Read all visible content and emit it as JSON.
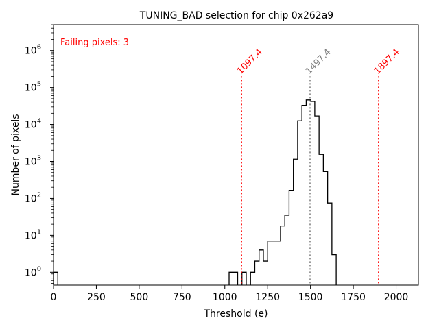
{
  "chart_data": {
    "type": "histogram",
    "title": "TUNING_BAD selection for chip 0x262a9",
    "xlabel": "Threshold (e)",
    "ylabel": "Number of pixels",
    "xlim": [
      0,
      2130
    ],
    "ylim": [
      0.45,
      5000000
    ],
    "yscale": "log",
    "xticks": [
      0,
      250,
      500,
      750,
      1000,
      1250,
      1500,
      1750,
      2000
    ],
    "xtick_labels": [
      "0",
      "250",
      "500",
      "750",
      "1000",
      "1250",
      "1500",
      "1750",
      "2000"
    ],
    "yticks": [
      1,
      10,
      100,
      1000,
      10000,
      100000,
      1000000
    ],
    "ytick_labels": [
      {
        "base": "10",
        "exp": "0"
      },
      {
        "base": "10",
        "exp": "1"
      },
      {
        "base": "10",
        "exp": "2"
      },
      {
        "base": "10",
        "exp": "3"
      },
      {
        "base": "10",
        "exp": "4"
      },
      {
        "base": "10",
        "exp": "5"
      },
      {
        "base": "10",
        "exp": "6"
      }
    ],
    "bin_width": 25,
    "bins": [
      {
        "x": 0,
        "count": 1
      },
      {
        "x": 1025,
        "count": 1
      },
      {
        "x": 1050,
        "count": 1
      },
      {
        "x": 1100,
        "count": 1
      },
      {
        "x": 1150,
        "count": 1
      },
      {
        "x": 1175,
        "count": 2
      },
      {
        "x": 1200,
        "count": 4
      },
      {
        "x": 1225,
        "count": 2
      },
      {
        "x": 1250,
        "count": 7
      },
      {
        "x": 1275,
        "count": 7
      },
      {
        "x": 1300,
        "count": 7
      },
      {
        "x": 1325,
        "count": 18
      },
      {
        "x": 1350,
        "count": 35
      },
      {
        "x": 1375,
        "count": 165
      },
      {
        "x": 1400,
        "count": 1150
      },
      {
        "x": 1425,
        "count": 12500
      },
      {
        "x": 1450,
        "count": 33000
      },
      {
        "x": 1475,
        "count": 46000
      },
      {
        "x": 1500,
        "count": 42000
      },
      {
        "x": 1525,
        "count": 17000
      },
      {
        "x": 1550,
        "count": 1550
      },
      {
        "x": 1575,
        "count": 530
      },
      {
        "x": 1600,
        "count": 75
      },
      {
        "x": 1625,
        "count": 3
      }
    ],
    "vlines": [
      {
        "x": 1097.4,
        "label": "1097.4",
        "color": "#ff0000"
      },
      {
        "x": 1497.4,
        "label": "1497.4",
        "color": "#808080"
      },
      {
        "x": 1897.4,
        "label": "1897.4",
        "color": "#ff0000"
      }
    ],
    "annotation": {
      "text": "Failing pixels: 3",
      "color": "#ff0000",
      "placement": "top-left"
    }
  }
}
